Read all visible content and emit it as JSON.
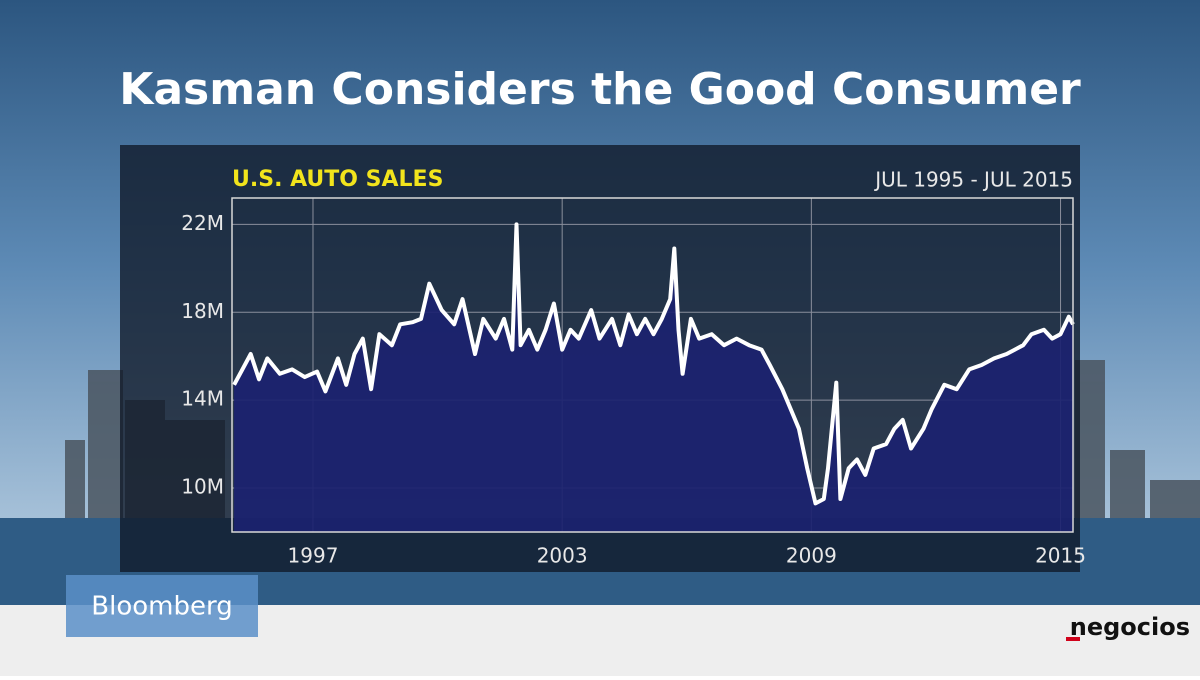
{
  "headline": "Kasman Considers the Good Consumer",
  "network": "Bloomberg",
  "publisher": "negocios",
  "chart_data": {
    "type": "area",
    "title": "U.S. AUTO SALES",
    "subtitle": "JUL 1995 - JUL 2015",
    "line_color": "#ffffff",
    "fill_color": "#1b2270",
    "grid": true,
    "xlim": [
      1995.05,
      2015.3
    ],
    "xticks": [
      1997,
      2003,
      2009,
      2015
    ],
    "ylim": [
      8,
      23.2
    ],
    "yticks": [
      {
        "value": 10,
        "label": "10M"
      },
      {
        "value": 14,
        "label": "14M"
      },
      {
        "value": 18,
        "label": "18M"
      },
      {
        "value": 22,
        "label": "22M"
      }
    ],
    "x": [
      1995.1,
      1995.3,
      1995.5,
      1995.7,
      1995.9,
      1996.2,
      1996.5,
      1996.8,
      1997.1,
      1997.3,
      1997.6,
      1997.8,
      1998.0,
      1998.2,
      1998.4,
      1998.6,
      1998.9,
      1999.1,
      1999.4,
      1999.6,
      1999.8,
      2000.1,
      2000.4,
      2000.6,
      2000.9,
      2001.1,
      2001.4,
      2001.6,
      2001.8,
      2001.9,
      2002.0,
      2002.2,
      2002.4,
      2002.6,
      2002.8,
      2003.0,
      2003.2,
      2003.4,
      2003.7,
      2003.9,
      2004.2,
      2004.4,
      2004.6,
      2004.8,
      2005.0,
      2005.2,
      2005.4,
      2005.6,
      2005.7,
      2005.8,
      2005.9,
      2006.1,
      2006.3,
      2006.6,
      2006.9,
      2007.2,
      2007.5,
      2007.8,
      2008.0,
      2008.3,
      2008.5,
      2008.7,
      2008.9,
      2009.1,
      2009.3,
      2009.4,
      2009.6,
      2009.7,
      2009.9,
      2010.1,
      2010.3,
      2010.5,
      2010.8,
      2011.0,
      2011.2,
      2011.4,
      2011.7,
      2011.9,
      2012.2,
      2012.5,
      2012.8,
      2013.1,
      2013.4,
      2013.7,
      2013.9,
      2014.1,
      2014.3,
      2014.6,
      2014.8,
      2015.0,
      2015.2,
      2015.3
    ],
    "values": [
      14.7,
      15.4,
      16.1,
      14.95,
      15.9,
      15.2,
      15.4,
      15.05,
      15.3,
      14.4,
      15.9,
      14.7,
      16.1,
      16.8,
      14.5,
      17.0,
      16.5,
      17.45,
      17.55,
      17.7,
      19.3,
      18.1,
      17.45,
      18.6,
      16.1,
      17.7,
      16.8,
      17.7,
      16.3,
      22.0,
      16.5,
      17.2,
      16.3,
      17.2,
      18.4,
      16.3,
      17.2,
      16.8,
      18.1,
      16.8,
      17.7,
      16.5,
      17.9,
      17.0,
      17.7,
      17.0,
      17.7,
      18.6,
      20.9,
      17.2,
      15.2,
      17.7,
      16.8,
      17.0,
      16.5,
      16.8,
      16.5,
      16.3,
      15.6,
      14.5,
      13.6,
      12.7,
      10.9,
      9.3,
      9.5,
      10.9,
      14.8,
      9.5,
      10.9,
      11.3,
      10.6,
      11.8,
      12.0,
      12.7,
      13.1,
      11.8,
      12.7,
      13.6,
      14.7,
      14.5,
      15.4,
      15.6,
      15.9,
      16.1,
      16.3,
      16.5,
      17.0,
      17.2,
      16.8,
      17.0,
      17.8,
      17.45
    ]
  }
}
